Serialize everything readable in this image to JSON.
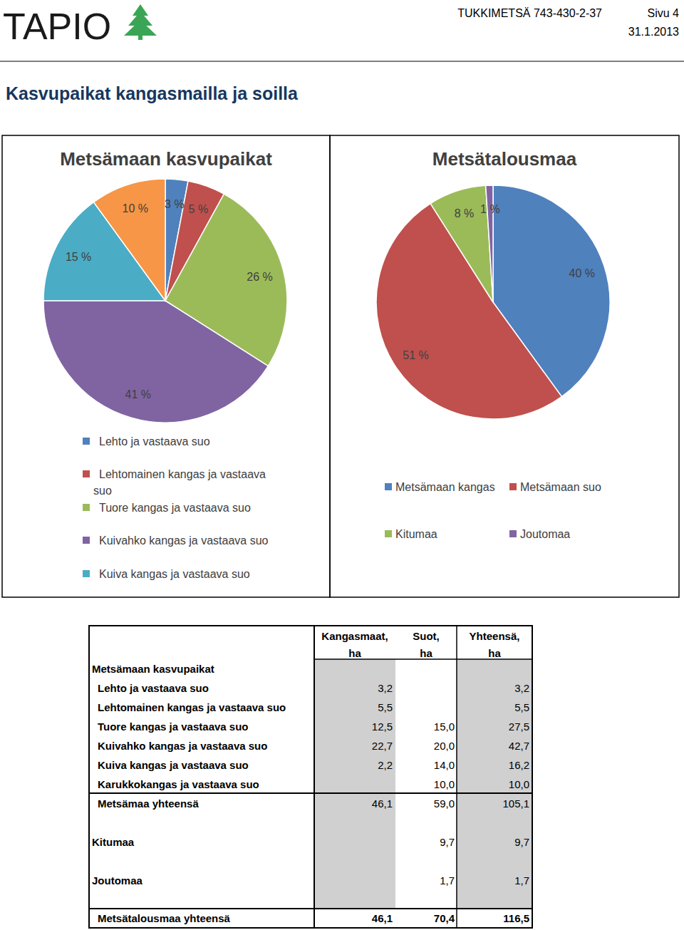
{
  "header": {
    "logo": "TAPIO",
    "document": "TUKKIMETSÄ 743-430-2-37",
    "page": "Sivu 4",
    "date": "31.1.2013"
  },
  "title": "Kasvupaikat kangasmailla ja soilla",
  "chart_data": [
    {
      "type": "pie",
      "title": "Metsämaan kasvupaikat",
      "categories": [
        "Lehto ja vastaava suo",
        "Lehtomainen kangas ja vastaava suo",
        "Tuore kangas ja vastaava suo",
        "Kuivahko kangas ja vastaava suo",
        "Kuiva kangas ja vastaava suo",
        null
      ],
      "values": [
        3,
        5,
        26,
        41,
        15,
        10
      ],
      "value_labels": [
        "3 %",
        "5 %",
        "26 %",
        "41 %",
        "15 %",
        "10 %"
      ],
      "colors": [
        "#4f81bd",
        "#c0504d",
        "#9bbb59",
        "#8064a2",
        "#4bacc6",
        "#f79646"
      ],
      "data_labels": true,
      "legend": "bottom"
    },
    {
      "type": "pie",
      "title": "Metsätalousmaa",
      "categories": [
        "Metsämaan kangas",
        "Metsämaan suo",
        "Kitumaa",
        "Joutomaa"
      ],
      "values": [
        40,
        51,
        8,
        1
      ],
      "value_labels": [
        "40 %",
        "51 %",
        "8 %",
        "1 %"
      ],
      "colors": [
        "#4f81bd",
        "#c0504d",
        "#9bbb59",
        "#8064a2"
      ],
      "data_labels": true,
      "legend": "bottom"
    }
  ],
  "table": {
    "columns": [
      [
        "Kangasmaat,",
        "ha"
      ],
      [
        "Suot,",
        "ha"
      ],
      [
        "Yhteensä,",
        "ha"
      ]
    ],
    "section": "Metsämaan kasvupaikat",
    "rows": [
      {
        "label": "Lehto ja vastaava suo",
        "cells": [
          "3,2",
          null,
          "3,2"
        ]
      },
      {
        "label": "Lehtomainen kangas ja vastaava suo",
        "cells": [
          "5,5",
          null,
          "5,5"
        ]
      },
      {
        "label": "Tuore kangas ja vastaava suo",
        "cells": [
          "12,5",
          "15,0",
          "27,5"
        ]
      },
      {
        "label": "Kuivahko kangas ja vastaava suo",
        "cells": [
          "22,7",
          "20,0",
          "42,7"
        ]
      },
      {
        "label": "Kuiva kangas ja vastaava suo",
        "cells": [
          "2,2",
          "14,0",
          "16,2"
        ]
      },
      {
        "label": "Karukkokangas ja vastaava suo",
        "cells": [
          null,
          "10,0",
          "10,0"
        ]
      },
      {
        "label": "Metsämaa yhteensä",
        "cells": [
          "46,1",
          "59,0",
          "105,1"
        ]
      },
      {
        "label": "Kitumaa",
        "cells": [
          null,
          "9,7",
          "9,7"
        ]
      },
      {
        "label": "Joutomaa",
        "cells": [
          null,
          "1,7",
          "1,7"
        ]
      },
      {
        "label": "Metsätalousmaa yhteensä",
        "cells": [
          "46,1",
          "70,4",
          "116,5"
        ]
      }
    ]
  }
}
